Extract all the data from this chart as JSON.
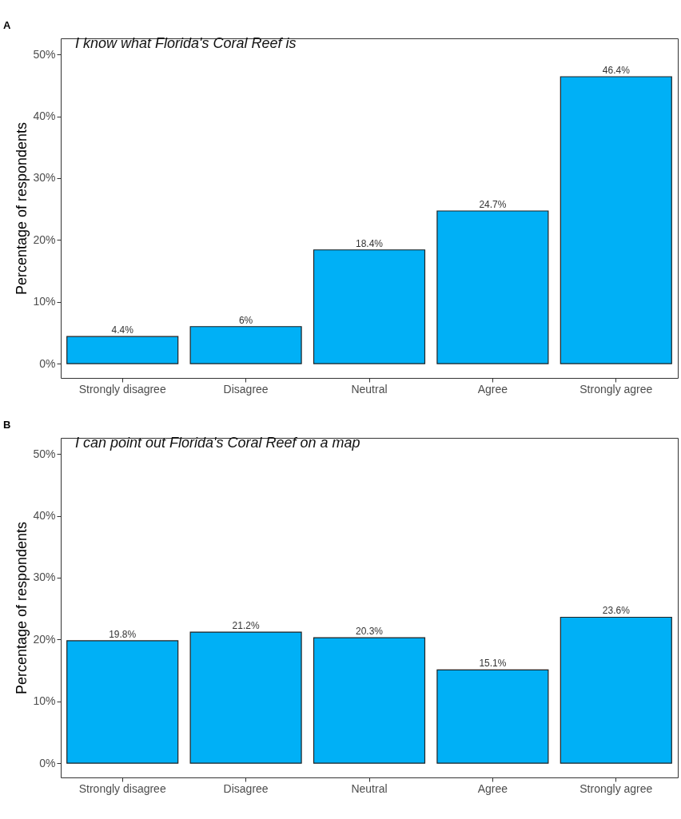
{
  "chart_data": [
    {
      "type": "bar",
      "title": "I know what Florida's Coral Reef is",
      "annotations": [
        "A"
      ],
      "ylabel": "Percentage of respondents",
      "categories": [
        "Strongly disagree",
        "Disagree",
        "Neutral",
        "Agree",
        "Strongly agree"
      ],
      "values": [
        4.4,
        6,
        18.4,
        24.7,
        46.4
      ],
      "value_labels": [
        "4.4%",
        "6%",
        "18.4%",
        "24.7%",
        "46.4%"
      ],
      "color": "#00b0f6",
      "ylim": [
        -2.3,
        52.6
      ],
      "yticks": [
        {
          "value": 0,
          "label": "0%"
        },
        {
          "value": 10,
          "label": "10%"
        },
        {
          "value": 20,
          "label": "20%"
        },
        {
          "value": 30,
          "label": "30%"
        },
        {
          "value": 40,
          "label": "40%"
        },
        {
          "value": 50,
          "label": "50%"
        }
      ]
    },
    {
      "type": "bar",
      "title": "I can point out Florida's Coral Reef on a map",
      "annotations": [
        "B"
      ],
      "ylabel": "Percentage of respondents",
      "categories": [
        "Strongly disagree",
        "Disagree",
        "Neutral",
        "Agree",
        "Strongly agree"
      ],
      "values": [
        19.8,
        21.2,
        20.3,
        15.1,
        23.6
      ],
      "value_labels": [
        "19.8%",
        "21.2%",
        "20.3%",
        "15.1%",
        "23.6%"
      ],
      "color": "#00b0f6",
      "ylim": [
        -2.3,
        52.6
      ],
      "yticks": [
        {
          "value": 0,
          "label": "0%"
        },
        {
          "value": 10,
          "label": "10%"
        },
        {
          "value": 20,
          "label": "20%"
        },
        {
          "value": 30,
          "label": "30%"
        },
        {
          "value": 40,
          "label": "40%"
        },
        {
          "value": 50,
          "label": "50%"
        }
      ]
    }
  ]
}
